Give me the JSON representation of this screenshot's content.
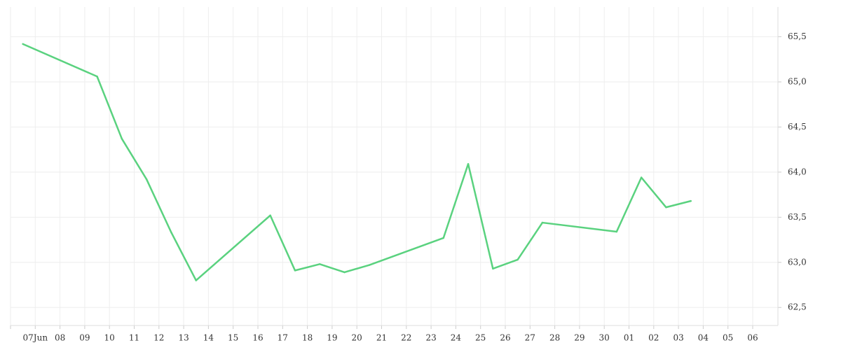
{
  "chart_data": {
    "type": "line",
    "categories": [
      null,
      "07Jun",
      "08",
      "09",
      "10",
      "11",
      "12",
      "13",
      "14",
      "15",
      "16",
      "17",
      "18",
      "19",
      "20",
      "21",
      "22",
      "23",
      "24",
      "25",
      "26",
      "27",
      "28",
      "29",
      "30",
      "01",
      "02",
      "03",
      "04",
      "05",
      "06"
    ],
    "series": [
      {
        "color": "#5ad27f",
        "values": [
          65.42,
          null,
          null,
          65.06,
          64.37,
          63.92,
          63.33,
          62.8,
          null,
          null,
          63.52,
          62.91,
          62.98,
          62.89,
          62.97,
          null,
          null,
          63.27,
          64.09,
          62.93,
          63.03,
          63.44,
          null,
          null,
          63.34,
          63.94,
          63.61,
          63.68,
          null,
          null,
          null
        ]
      }
    ],
    "connect_gaps": true,
    "ylim": [
      62.3,
      65.83
    ],
    "yticks": [
      {
        "value": 62.5,
        "label": "62,5"
      },
      {
        "value": 63,
        "label": "63,0"
      },
      {
        "value": 63.5,
        "label": "63,5"
      },
      {
        "value": 64,
        "label": "64,0"
      },
      {
        "value": 64.5,
        "label": "64,5"
      },
      {
        "value": 65,
        "label": "65,0"
      },
      {
        "value": 65.5,
        "label": "65,5"
      }
    ],
    "grid": true
  }
}
